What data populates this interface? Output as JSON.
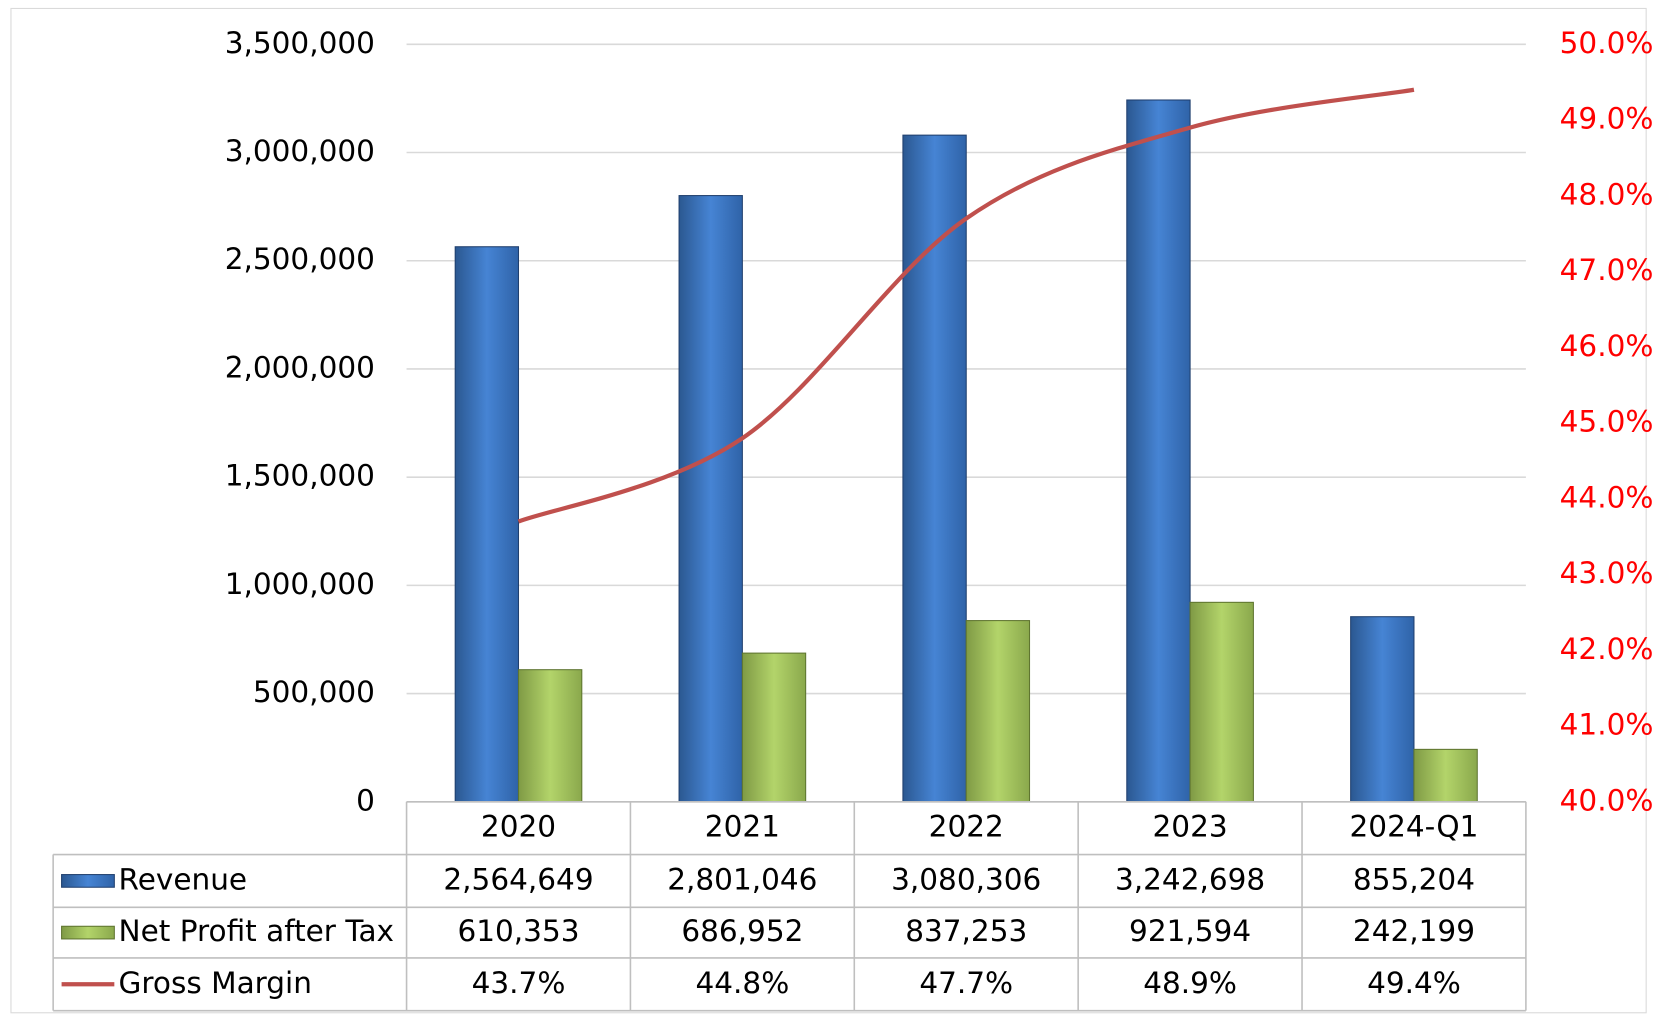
{
  "chart_data": {
    "type": "bar",
    "categories": [
      "2020",
      "2021",
      "2022",
      "2023",
      "2024-Q1"
    ],
    "series": [
      {
        "name": "Revenue",
        "color": "#3a72c0",
        "values": [
          2564649,
          2801046,
          3080306,
          3242698,
          855204
        ],
        "value_labels": [
          "2,564,649",
          "2,801,046",
          "3,080,306",
          "3,242,698",
          "855,204"
        ]
      },
      {
        "name": "Net Profit after Tax",
        "color": "#9bbb59",
        "values": [
          610353,
          686952,
          837253,
          921594,
          242199
        ],
        "value_labels": [
          "610,353",
          "686,952",
          "837,253",
          "921,594",
          "242,199"
        ]
      },
      {
        "name": "Gross Margin",
        "color": "#c0504d",
        "type": "line",
        "axis": "y2",
        "values": [
          43.7,
          44.8,
          47.7,
          48.9,
          49.4
        ],
        "value_labels": [
          "43.7%",
          "44.8%",
          "47.7%",
          "48.9%",
          "49.4%"
        ]
      }
    ],
    "ylim": [
      0,
      3500000
    ],
    "yticks": [
      0,
      {
        "value": 500000,
        "label": "500,000"
      },
      {
        "value": 1000000,
        "label": "1,000,000"
      },
      {
        "value": 1500000,
        "label": "1,500,000"
      },
      {
        "value": 2000000,
        "label": "2,000,000"
      },
      {
        "value": 2500000,
        "label": "2,500,000"
      },
      {
        "value": 3000000,
        "label": "3,000,000"
      },
      {
        "value": 3500000,
        "label": "3,500,000"
      }
    ],
    "y2lim": [
      40,
      50
    ],
    "y2ticks": [
      {
        "value": 40,
        "label": "40.0%"
      },
      {
        "value": 41,
        "label": "41.0%"
      },
      {
        "value": 42,
        "label": "42.0%"
      },
      {
        "value": 43,
        "label": "43.0%"
      },
      {
        "value": 44,
        "label": "44.0%"
      },
      {
        "value": 45,
        "label": "45.0%"
      },
      {
        "value": 46,
        "label": "46.0%"
      },
      {
        "value": 47,
        "label": "47.0%"
      },
      {
        "value": 48,
        "label": "48.0%"
      },
      {
        "value": 49,
        "label": "49.0%"
      },
      {
        "value": 50,
        "label": "50.0%"
      }
    ],
    "grid": true,
    "data_table": true
  }
}
